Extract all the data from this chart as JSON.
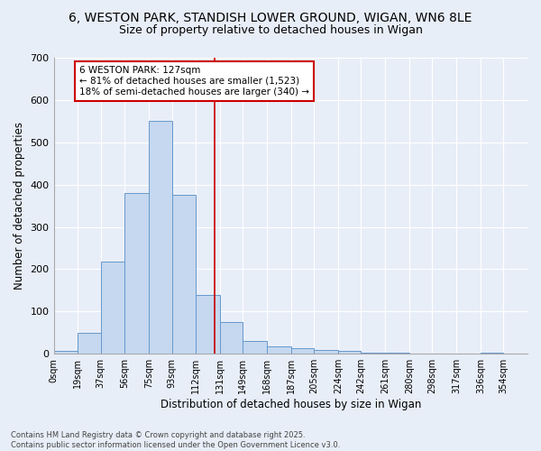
{
  "title": "6, WESTON PARK, STANDISH LOWER GROUND, WIGAN, WN6 8LE",
  "subtitle": "Size of property relative to detached houses in Wigan",
  "xlabel": "Distribution of detached houses by size in Wigan",
  "ylabel": "Number of detached properties",
  "bar_color": "#c5d8f0",
  "bar_edge_color": "#6699cc",
  "bg_color": "#e8eef8",
  "grid_color": "#ffffff",
  "vline_x": 127,
  "vline_color": "#cc0000",
  "annotation_text": "6 WESTON PARK: 127sqm\n← 81% of detached houses are smaller (1,523)\n18% of semi-detached houses are larger (340) →",
  "annotation_box_color": "#ffffff",
  "annotation_box_edge": "#cc0000",
  "bins": [
    0,
    19,
    37,
    56,
    75,
    93,
    112,
    131,
    149,
    168,
    187,
    205,
    224,
    242,
    261,
    280,
    298,
    317,
    336,
    354,
    373
  ],
  "counts": [
    6,
    50,
    219,
    380,
    550,
    375,
    140,
    76,
    30,
    18,
    13,
    10,
    7,
    3,
    2,
    1,
    1,
    0,
    2,
    1
  ],
  "ylim": [
    0,
    700
  ],
  "yticks": [
    0,
    100,
    200,
    300,
    400,
    500,
    600,
    700
  ],
  "footnote": "Contains HM Land Registry data © Crown copyright and database right 2025.\nContains public sector information licensed under the Open Government Licence v3.0.",
  "title_fontsize": 10,
  "subtitle_fontsize": 9,
  "tick_label_fontsize": 7,
  "ylabel_fontsize": 8.5,
  "xlabel_fontsize": 8.5,
  "annotation_fontsize": 7.5,
  "footnote_fontsize": 6
}
